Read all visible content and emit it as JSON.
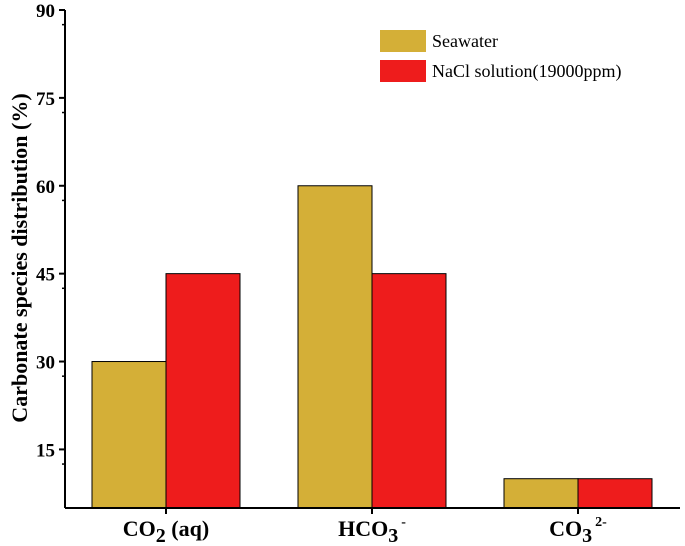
{
  "chart_data": {
    "type": "bar",
    "title": "",
    "xlabel": "",
    "ylabel": "Carbonate species distribution (%)",
    "ylim": [
      5,
      90
    ],
    "yticks": [
      15,
      30,
      45,
      60,
      75,
      90
    ],
    "categories": [
      {
        "main": "CO",
        "sub": "2",
        "sup": "",
        "tail": " (aq)"
      },
      {
        "main": "HCO",
        "sub": "3",
        "sup": "-",
        "tail": ""
      },
      {
        "main": "CO",
        "sub": "3",
        "sup": "2-",
        "tail": ""
      }
    ],
    "series": [
      {
        "name": "Seawater",
        "color": "#D4AF37",
        "values": [
          30,
          60,
          10
        ]
      },
      {
        "name": "NaCl solution(19000ppm)",
        "color": "#EE1C1C",
        "values": [
          45,
          45,
          10
        ]
      }
    ],
    "legend_position": "top-right"
  }
}
